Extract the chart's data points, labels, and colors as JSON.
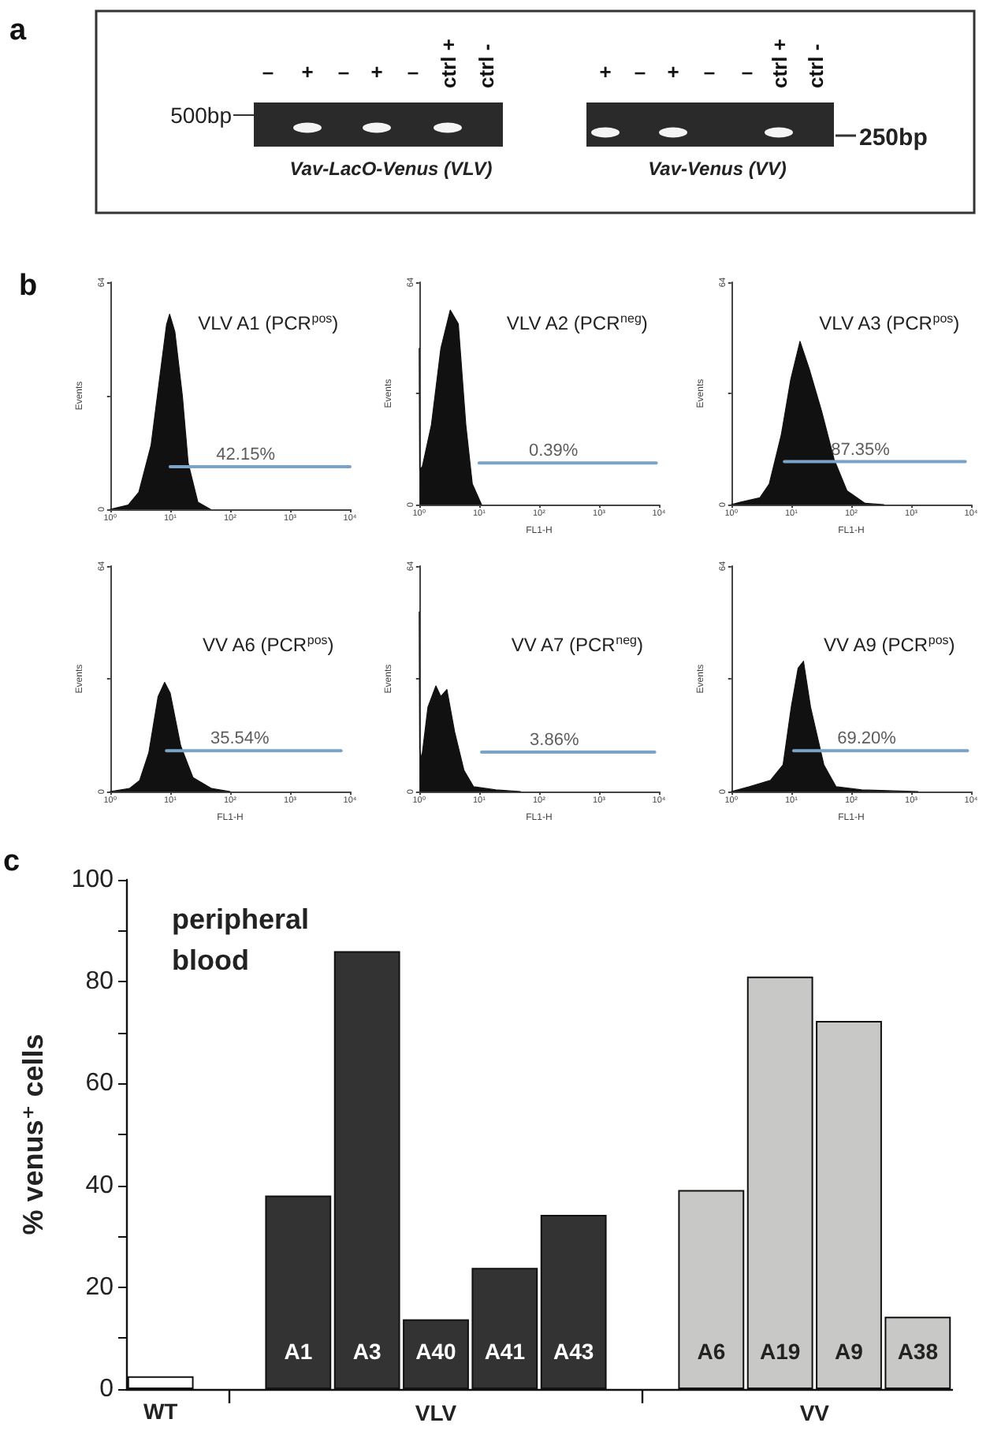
{
  "chart_data": [
    {
      "type": "other",
      "annotations": [
        "a",
        "500bp",
        "250bp",
        "Vav-LacO-Venus (VLV)",
        "Vav-Venus (VV)"
      ],
      "categories": [
        "–",
        "+",
        "–",
        "+",
        "–",
        "ctrl +",
        "ctrl -",
        "+",
        "–",
        "+",
        "–",
        "–",
        "ctrl +",
        "ctrl -"
      ]
    },
    {
      "type": "area",
      "title": "VLV A1 (PCR$^{pos}$)",
      "ylabel": "Events",
      "log": "x",
      "xlim": [
        1,
        10000
      ],
      "xticks": [
        {
          "value": 1,
          "label": "10⁰"
        },
        {
          "value": 10,
          "label": "10¹"
        },
        {
          "value": 100,
          "label": "10²"
        },
        {
          "value": 1000,
          "label": "10³"
        },
        {
          "value": 10000,
          "label": "10⁴"
        }
      ],
      "ylim": [
        0,
        64
      ],
      "yticks": [
        0,
        {
          "value": 32,
          "label": null
        },
        64
      ],
      "annotations": [
        "b",
        "42.15%"
      ],
      "series": [
        {
          "type": "area",
          "color": "#111111",
          "x": [
            1,
            2,
            3,
            4.8,
            6.8,
            8.7,
            9.8,
            12,
            16,
            20,
            29,
            47
          ],
          "values": [
            0,
            1.2,
            4.8,
            18,
            38,
            52,
            55,
            50,
            32,
            13,
            2,
            0
          ]
        },
        {
          "type": "line",
          "color": "#7ba3c8",
          "x": [
            10,
            10000
          ],
          "values": [
            12,
            12
          ]
        }
      ]
    },
    {
      "type": "area",
      "title": "VLV A2 (PCR$^{neg}$)",
      "xlabel": "FL1-H",
      "ylabel": "Events",
      "log": "x",
      "xlim": [
        1,
        10000
      ],
      "xticks": [
        {
          "value": 1,
          "label": "10⁰"
        },
        {
          "value": 10,
          "label": "10¹"
        },
        {
          "value": 100,
          "label": "10²"
        },
        {
          "value": 1000,
          "label": "10³"
        },
        {
          "value": 10000,
          "label": "10⁴"
        }
      ],
      "ylim": [
        0,
        64
      ],
      "yticks": [
        0,
        {
          "value": 32,
          "label": null
        },
        64
      ],
      "annotations": [
        "0.39%"
      ],
      "series": [
        {
          "type": "area",
          "color": "#111111",
          "x": [
            1,
            1.02,
            1.13,
            1.6,
            2.3,
            3.3,
            4.5,
            6,
            7.7,
            11
          ],
          "values": [
            45,
            10,
            11,
            23,
            45,
            56,
            52,
            23,
            6,
            0
          ]
        },
        {
          "type": "line",
          "color": "#7ba3c8",
          "x": [
            10,
            9000
          ],
          "values": [
            12,
            12
          ]
        }
      ]
    },
    {
      "type": "area",
      "title": "VLV A3 (PCR$^{pos}$)",
      "xlabel": "FL1-H",
      "ylabel": "Events",
      "log": "x",
      "xlim": [
        1,
        10000
      ],
      "xticks": [
        {
          "value": 1,
          "label": "10⁰"
        },
        {
          "value": 10,
          "label": "10¹"
        },
        {
          "value": 100,
          "label": "10²"
        },
        {
          "value": 1000,
          "label": "10³"
        },
        {
          "value": 10000,
          "label": "10⁴"
        }
      ],
      "ylim": [
        0,
        64
      ],
      "yticks": [
        0,
        {
          "value": 32,
          "label": null
        },
        64
      ],
      "annotations": [
        "87.35%"
      ],
      "series": [
        {
          "type": "area",
          "color": "#111111",
          "x": [
            1,
            1.4,
            3,
            4.3,
            6.8,
            9.8,
            14,
            20,
            32,
            52,
            85,
            170,
            350
          ],
          "values": [
            0,
            0.7,
            2,
            6,
            20,
            36,
            47,
            39,
            27,
            13,
            4,
            0.4,
            0
          ]
        },
        {
          "type": "line",
          "color": "#7ba3c8",
          "x": [
            7.7,
            8000
          ],
          "values": [
            12.4,
            12.4
          ]
        }
      ]
    },
    {
      "type": "area",
      "title": "VV A6 (PCR$^{pos}$)",
      "xlabel": "FL1-H",
      "ylabel": "Events",
      "log": "x",
      "xlim": [
        1,
        10000
      ],
      "xticks": [
        {
          "value": 1,
          "label": "10⁰"
        },
        {
          "value": 10,
          "label": "10¹"
        },
        {
          "value": 100,
          "label": "10²"
        },
        {
          "value": 1000,
          "label": "10³"
        },
        {
          "value": 10000,
          "label": "10⁴"
        }
      ],
      "ylim": [
        0,
        64
      ],
      "yticks": [
        0,
        {
          "value": 32,
          "label": null
        },
        64
      ],
      "annotations": [
        "35.54%"
      ],
      "series": [
        {
          "type": "area",
          "color": "#111111",
          "x": [
            1,
            2.1,
            3.1,
            4.4,
            6.3,
            8.1,
            10,
            15,
            24,
            49,
            100
          ],
          "values": [
            0,
            0.9,
            3.2,
            11,
            27,
            31,
            28,
            13,
            4,
            0.9,
            0
          ]
        },
        {
          "type": "line",
          "color": "#7ba3c8",
          "x": [
            8.7,
            7100
          ],
          "values": [
            11.6,
            11.6
          ]
        }
      ]
    },
    {
      "type": "area",
      "title": "VV A7 (PCR$^{neg}$)",
      "xlabel": "FL1-H",
      "ylabel": "Events",
      "log": "x",
      "xlim": [
        1,
        10000
      ],
      "xticks": [
        {
          "value": 1,
          "label": "10⁰"
        },
        {
          "value": 10,
          "label": "10¹"
        },
        {
          "value": 100,
          "label": "10²"
        },
        {
          "value": 1000,
          "label": "10³"
        },
        {
          "value": 10000,
          "label": "10⁴"
        }
      ],
      "ylim": [
        0,
        64
      ],
      "yticks": [
        0,
        {
          "value": 32,
          "label": null
        },
        64
      ],
      "annotations": [
        "3.86%"
      ],
      "series": [
        {
          "type": "area",
          "color": "#111111",
          "x": [
            1,
            1.02,
            1.1,
            1.4,
            1.9,
            2.3,
            2.9,
            3.9,
            5.6,
            8.1,
            19,
            49
          ],
          "values": [
            51,
            12,
            9.4,
            24,
            30,
            27,
            29,
            17,
            6,
            1.4,
            0.5,
            0
          ]
        },
        {
          "type": "line",
          "color": "#7ba3c8",
          "x": [
            11,
            8500
          ],
          "values": [
            11.2,
            11.2
          ]
        }
      ]
    },
    {
      "type": "area",
      "title": "VV A9 (PCR$^{pos}$)",
      "xlabel": "FL1-H",
      "ylabel": "Events",
      "log": "x",
      "xlim": [
        1,
        10000
      ],
      "xticks": [
        {
          "value": 1,
          "label": "10⁰"
        },
        {
          "value": 10,
          "label": "10¹"
        },
        {
          "value": 100,
          "label": "10²"
        },
        {
          "value": 1000,
          "label": "10³"
        },
        {
          "value": 10000,
          "label": "10⁴"
        }
      ],
      "ylim": [
        0,
        64
      ],
      "yticks": [
        0,
        {
          "value": 32,
          "label": null
        },
        64
      ],
      "annotations": [
        "69.20%"
      ],
      "series": [
        {
          "type": "area",
          "color": "#111111",
          "x": [
            1,
            2,
            4.5,
            7.3,
            10,
            13,
            16,
            21,
            35,
            56,
            150,
            1300
          ],
          "values": [
            0,
            1.4,
            3.2,
            7.6,
            24,
            35,
            37,
            24,
            7.6,
            1.4,
            0.5,
            0
          ]
        },
        {
          "type": "line",
          "color": "#7ba3c8",
          "x": [
            11,
            8700
          ],
          "values": [
            11.6,
            11.6
          ]
        }
      ]
    },
    {
      "type": "bar",
      "title": "peripheral blood",
      "ylabel": "% venus⁺ cells",
      "categories": [
        "WT",
        null,
        "A1",
        "A3",
        "A40",
        "A41",
        "A43",
        null,
        "A6",
        "A19",
        "A9",
        "A38"
      ],
      "values": [
        2.5,
        null,
        38,
        86,
        13.7,
        23.8,
        34.2,
        null,
        39.1,
        81,
        72.3,
        14.2
      ],
      "colors": [
        "#ffffff",
        null,
        "#333333",
        "#333333",
        "#333333",
        "#333333",
        "#333333",
        null,
        "#c8c8c6",
        "#c8c8c6",
        "#c8c8c6",
        "#c8c8c6"
      ],
      "ylim": [
        0,
        100
      ],
      "yticks": [
        0,
        {
          "value": 10,
          "label": null
        },
        20,
        {
          "value": 30,
          "label": null
        },
        40,
        {
          "value": 50,
          "label": null
        },
        60,
        {
          "value": 70,
          "label": null
        },
        80,
        {
          "value": 90,
          "label": null
        },
        100
      ],
      "annotations": [
        "c",
        "VLV",
        "VV"
      ]
    }
  ]
}
